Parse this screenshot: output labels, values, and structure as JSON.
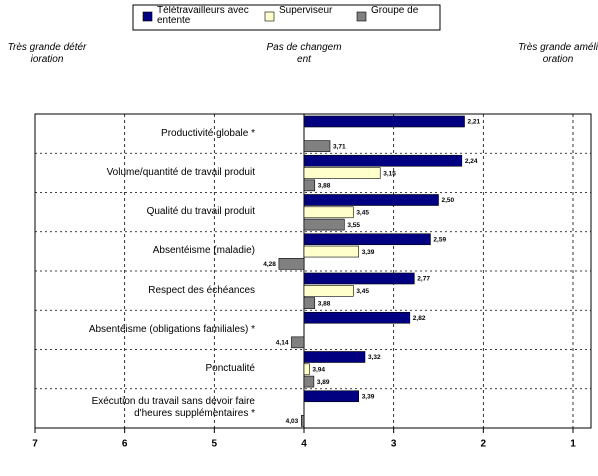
{
  "chart_data": {
    "type": "bar",
    "orientation": "horizontal",
    "annotations": [
      "Très grande détérioration",
      "Pas de changement",
      "Très grande amélioration"
    ],
    "categories": [
      "Productivité globale *",
      "Volume/quantité de travail produit",
      "Qualité du travail produit",
      "Absentéisme (maladie)",
      "Respect des échéances",
      "Absentéisme (obligations familiales) *",
      "Ponctualité",
      "Exécution du travail sans devoir faire d'heures supplémentaires *"
    ],
    "series": [
      {
        "name": "Télétravailleurs avec entente",
        "color": "#000080",
        "values": [
          2.21,
          2.24,
          2.5,
          2.59,
          2.77,
          2.82,
          3.32,
          3.39
        ],
        "value_labels": [
          "2,21",
          "2,24",
          "2,50",
          "2,59",
          "2,77",
          "2,82",
          "3,32",
          "3,39"
        ]
      },
      {
        "name": "Superviseur",
        "color": "#ffffcc",
        "values": [
          null,
          3.15,
          3.45,
          3.39,
          3.45,
          null,
          3.94,
          null
        ],
        "value_labels": [
          null,
          "3,15",
          "3,45",
          "3,39",
          "3,45",
          null,
          "3,94",
          null
        ]
      },
      {
        "name": "Groupe de",
        "color": "#808080",
        "values": [
          3.71,
          3.88,
          3.55,
          4.28,
          3.88,
          4.14,
          3.89,
          4.03
        ],
        "value_labels": [
          "3,71",
          "3,88",
          "3,55",
          "4,28",
          "3,88",
          "4,14",
          "3,89",
          "4,03"
        ]
      }
    ],
    "xlim": [
      7,
      1
    ],
    "xticks": [
      7,
      6,
      5,
      4,
      3,
      2,
      1
    ],
    "grid": true
  }
}
